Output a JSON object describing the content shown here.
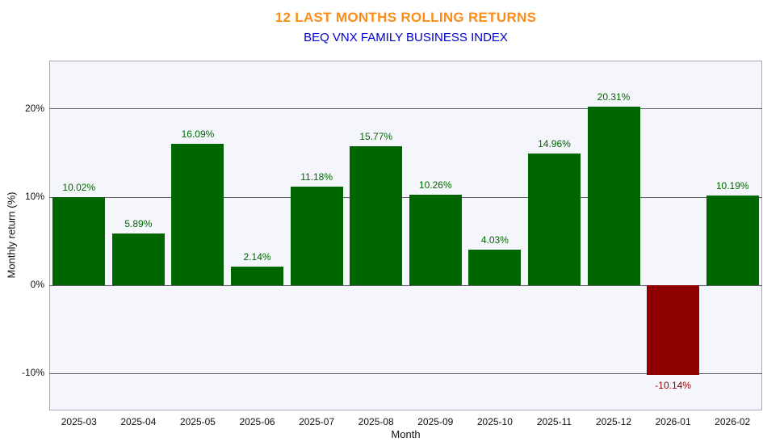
{
  "header": {
    "title": "12 LAST MONTHS ROLLING RETURNS",
    "subtitle": "BEQ VNX FAMILY BUSINESS INDEX"
  },
  "chart_data": {
    "type": "bar",
    "title": "12 LAST MONTHS ROLLING RETURNS",
    "subtitle": "BEQ VNX FAMILY BUSINESS INDEX",
    "xlabel": "Month",
    "ylabel": "Monthly return (%)",
    "categories": [
      "2025-03",
      "2025-04",
      "2025-05",
      "2025-06",
      "2025-07",
      "2025-08",
      "2025-09",
      "2025-10",
      "2025-11",
      "2025-12",
      "2026-01",
      "2026-02"
    ],
    "values": [
      10.02,
      5.89,
      16.09,
      2.14,
      11.18,
      15.77,
      10.26,
      4.03,
      14.96,
      20.31,
      -10.14,
      10.19
    ],
    "value_labels": [
      "10.02%",
      "5.89%",
      "16.09%",
      "2.14%",
      "11.18%",
      "15.77%",
      "10.26%",
      "4.03%",
      "14.96%",
      "20.31%",
      "-10.14%",
      "10.19%"
    ],
    "ylim": [
      -14.2,
      25.5
    ],
    "yticks": [
      {
        "value": -10,
        "label": "-10%"
      },
      {
        "value": 0,
        "label": "0%"
      },
      {
        "value": 10,
        "label": "10%"
      },
      {
        "value": 20,
        "label": "20%"
      }
    ],
    "grid": true,
    "legend": false,
    "colors": {
      "title": "#fb8d1a",
      "subtitle": "#0000cc",
      "positive": "#006600",
      "negative": "#8e0000",
      "positive_label": "#006600",
      "negative_label": "#8e0000",
      "plot_background": "#f5f6fb",
      "plot_border": "#aaaab4",
      "gridline": "#5a5a64",
      "axis_text": "#111111"
    }
  }
}
